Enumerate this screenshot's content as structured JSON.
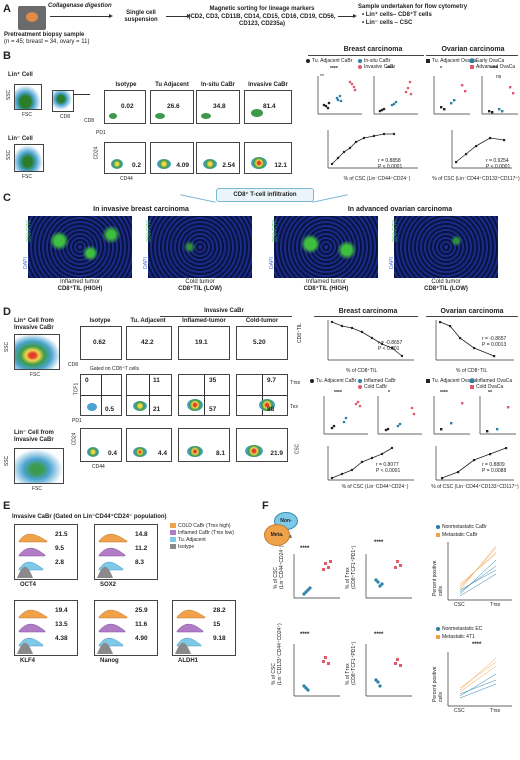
{
  "panelA": {
    "letter": "A",
    "biopsy": "Pretreatment biopsy sample",
    "cohort": "(n = 45; breast = 34, ovary = 11)",
    "digestion": "Collagenase digestion",
    "step2": "Single cell suspension",
    "step3_title": "Magnetic sorting for lineage markers",
    "step3_markers": "(CD2, CD3, CD11B, CD14, CD15, CD16, CD19, CD56, CD123, CD235a)",
    "step4_title": "Sample undertaken for flow cytometry",
    "step4_a": "• Lin⁺ cells– CD8⁺T cells",
    "step4_b": "• Lin⁻ cells – CSC"
  },
  "panelB": {
    "letter": "B",
    "lin_pos": "Lin⁺ Cell",
    "lin_neg": "Lin⁻ Cell",
    "ssc": "SSC",
    "fsc": "FSC",
    "cd8": "CD8",
    "pd1": "PD1",
    "cd24": "CD24",
    "cd44": "CD44",
    "cols": [
      "Isotype",
      "Tu Adjacent",
      "In-situ CaBr",
      "Invasive CaBr"
    ],
    "pd1_vals": [
      "0.02",
      "26.6",
      "34.8",
      "81.4"
    ],
    "csc_vals": [
      "0.2",
      "4.09",
      "2.54",
      "12.1"
    ],
    "breast_title": "Breast carcinoma",
    "ovarian_title": "Ovarian carcinoma",
    "breast_legend": [
      "Tu. Adjacent CaBr",
      "In-situ CaBr",
      "Invasive CaBr"
    ],
    "ovarian_legend": [
      "Tu. Adjacent OvaCa",
      "Early OvaCa",
      "Advanced OvaCa"
    ],
    "sig": "****",
    "sig2": "**",
    "sig3": "*",
    "y_cd8pd1": "% of CD8⁺PD1⁺",
    "y_csc_breast": "% of CSC (Lin⁻CD44⁺CD24⁻)",
    "y_csc_ovary": "% of CSC (Lin⁻CD44⁺CD133⁺CD117⁺)",
    "x_csc_breast": "% of CSC (Lin⁻CD44⁺CD24⁻)",
    "x_csc_ovary": "% of CSC (Lin⁻CD44⁺CD133⁺CD117⁺)",
    "corr_breast_r": "r = 0.8858",
    "corr_breast_p": "P < 0.0001",
    "corr_ovary_r": "r = 0.9254",
    "corr_ovary_p": "P < 0.0001",
    "ns": "ns"
  },
  "panelC": {
    "letter": "C",
    "header": "CD8⁺ T-cell infiltration",
    "left_title": "In invasive breast carcinoma",
    "right_title": "In advanced ovarian carcinoma",
    "label_cd8": "CD8-FITC",
    "label_dapi": "DAPI",
    "captions": [
      "Inflamed tumor",
      "Cold tumor",
      "Inflamed tumor",
      "Cold tumor"
    ],
    "subcaptions": [
      "CD8⁺TIL (HIGH)",
      "CD8⁺TIL (LOW)",
      "CD8⁺TIL (HIGH)",
      "CD8⁺TIL (LOW)"
    ]
  },
  "panelD": {
    "letter": "D",
    "lin_pos": "Lin⁺ Cell from Invasive CaBr",
    "lin_neg": "Lin⁻ Cell from Invasive CaBr",
    "group": "Invasive CaBr",
    "cols": [
      "Isotype",
      "Tu. Adjacent",
      "Inflamed-tumor",
      "Cold-tumor"
    ],
    "cd8_vals": [
      "0.62",
      "42.2",
      "19.1",
      "5.20"
    ],
    "gated": "Gated on CD8⁺T cells",
    "tcf1": "TCF1",
    "pd1": "PD1",
    "cd8til": "CD8⁺TIL",
    "cd24": "CD24",
    "cd44": "CD44",
    "csc": "CSC",
    "ttex": "Tᴛᴇx",
    "tex": "Tᴇx",
    "top_vals": [
      "0",
      "11",
      "35",
      "9.7"
    ],
    "low_vals": [
      "0.5",
      "21",
      "57",
      "88"
    ],
    "csc_vals": [
      "0.4",
      "4.4",
      "8.1",
      "21.9"
    ],
    "breast_title": "Breast carcinoma",
    "ovarian_title": "Ovarian carcinoma",
    "breast_legend": [
      "Tu. Adjacent CaBr",
      "Inflamed CaBr",
      "Cold CaBr"
    ],
    "ovarian_legend": [
      "Tu. Adjacent OvaCa",
      "Inflamed OvaCa",
      "Cold OvaCa"
    ],
    "corr1_r": "r = -0.8657",
    "corr1_p": "P < 0.001",
    "corr2_r": "r = -0.8657",
    "corr2_p": "P = 0.0013",
    "corr3_r": "r = 0.8077",
    "corr3_p": "P < 0.0001",
    "corr4_r": "r = 0.8809",
    "corr4_p": "P = 0.0088",
    "y_ttex": "% of Tᴛᴇx (CD8⁺TCF1⁺PD1⁺)",
    "x_cd8til": "% of CD8⁺TIL",
    "y_relative": "Relative % of Tᴛᴇx over Tᴇx",
    "x_csc_b": "% of CSC (Lin⁻CD44⁺CD24⁻)",
    "x_csc_o": "% of CSC (Lin⁻CD44⁺CD133⁺CD117⁺)",
    "sig": "****",
    "sig2": "**",
    "sig3": "*"
  },
  "panelE": {
    "letter": "E",
    "title": "Invasive CaBr (Gated on Lin⁻CD44⁺CD24⁻ population)",
    "legend": [
      "COLD CaBr (Tᴛᴇx high)",
      "Inflamed CaBr (Tᴛᴇx low)",
      "Tu. Adjacent",
      "Isotype"
    ],
    "legend_colors": [
      "#f0a24a",
      "#b07cc6",
      "#7ec9e8",
      "#8a8a8a"
    ],
    "markers": [
      "OCT4",
      "SOX2",
      "KLF4",
      "Nanog",
      "ALDH1"
    ],
    "values": [
      [
        "21.5",
        "9.5",
        "2.8"
      ],
      [
        "14.8",
        "11.2",
        "8.3"
      ],
      [
        "19.4",
        "13.5",
        "4.38"
      ],
      [
        "25.9",
        "11.6",
        "4.90"
      ],
      [
        "28.2",
        "15",
        "9.18"
      ]
    ]
  },
  "panelF": {
    "letter": "F",
    "bubble_a": "Non-Meta",
    "bubble_b": "Meta.",
    "legend1": [
      "Nonmetastatic CaBr",
      "Metastatic CaBr"
    ],
    "legend2": [
      "Nonmetastatic EC",
      "Metastatic 4T1"
    ],
    "sig": "****",
    "y1": "% of CSC (Lin⁻CD44⁺CD24⁻)",
    "y2": "% of Tᴛᴇx (CD8⁺TCF1⁺PD1⁺)",
    "y3": "% of CSC (Lin⁻CD133⁺CD44⁺CD24⁺)",
    "y4": "% of Tᴛᴇx (CD8⁺TCF1⁺PD1⁺)",
    "ylabel_pp": "Percent positive cells",
    "x_csc": "CSC",
    "x_ttex": "Tᴛᴇx"
  },
  "colors": {
    "teal": "#2a7fa8",
    "pink": "#e05a6a",
    "orange": "#f0a24a",
    "purple": "#b07cc6",
    "cyan": "#7ec9e8",
    "dark": "#222222"
  }
}
